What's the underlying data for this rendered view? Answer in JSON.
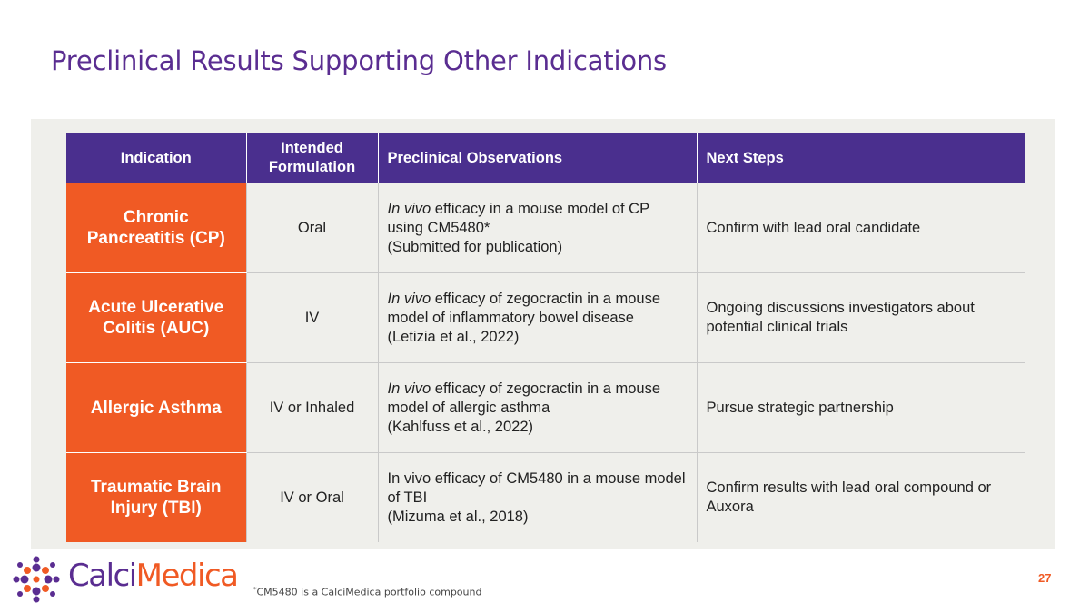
{
  "title": "Preclinical Results Supporting Other Indications",
  "table": {
    "headers": {
      "indication": "Indication",
      "formulation": "Intended Formulation",
      "observations": "Preclinical Observations",
      "next_steps": "Next Steps"
    },
    "rows": [
      {
        "indication": "Chronic Pancreatitis (CP)",
        "formulation": "Oral",
        "obs_italic": "In vivo",
        "obs_rest": " efficacy in a mouse model of CP using CM5480*",
        "obs_ref": "(Submitted for publication)",
        "next": "Confirm with lead oral candidate"
      },
      {
        "indication": "Acute Ulcerative Colitis (AUC)",
        "formulation": "IV",
        "obs_italic": "In vivo",
        "obs_rest": " efficacy of zegocractin in a mouse model of inflammatory bowel disease",
        "obs_ref": "(Letizia et al., 2022)",
        "next": "Ongoing discussions investigators about potential clinical trials"
      },
      {
        "indication": "Allergic Asthma",
        "formulation": "IV or Inhaled",
        "obs_italic": "In vivo",
        "obs_rest": " efficacy of zegocractin in a mouse model of allergic asthma",
        "obs_ref": "(Kahlfuss et al., 2022)",
        "next": "Pursue strategic partnership"
      },
      {
        "indication": "Traumatic Brain Injury (TBI)",
        "formulation": "IV or Oral",
        "obs_italic": "",
        "obs_rest": "In vivo efficacy of CM5480 in a mouse model of TBI",
        "obs_ref": "(Mizuma et al., 2018)",
        "next": "Confirm results with lead oral compound or Auxora"
      }
    ]
  },
  "footnote": {
    "mark": "*",
    "text": "CM5480 is a CalciMedica portfolio compound"
  },
  "page_number": "27",
  "logo": {
    "part1": "Calci",
    "part2": "Medica"
  },
  "colors": {
    "title_purple": "#5a2d91",
    "header_purple": "#4a2f8e",
    "accent_orange": "#f05a24",
    "panel_gray": "#efefeb"
  }
}
